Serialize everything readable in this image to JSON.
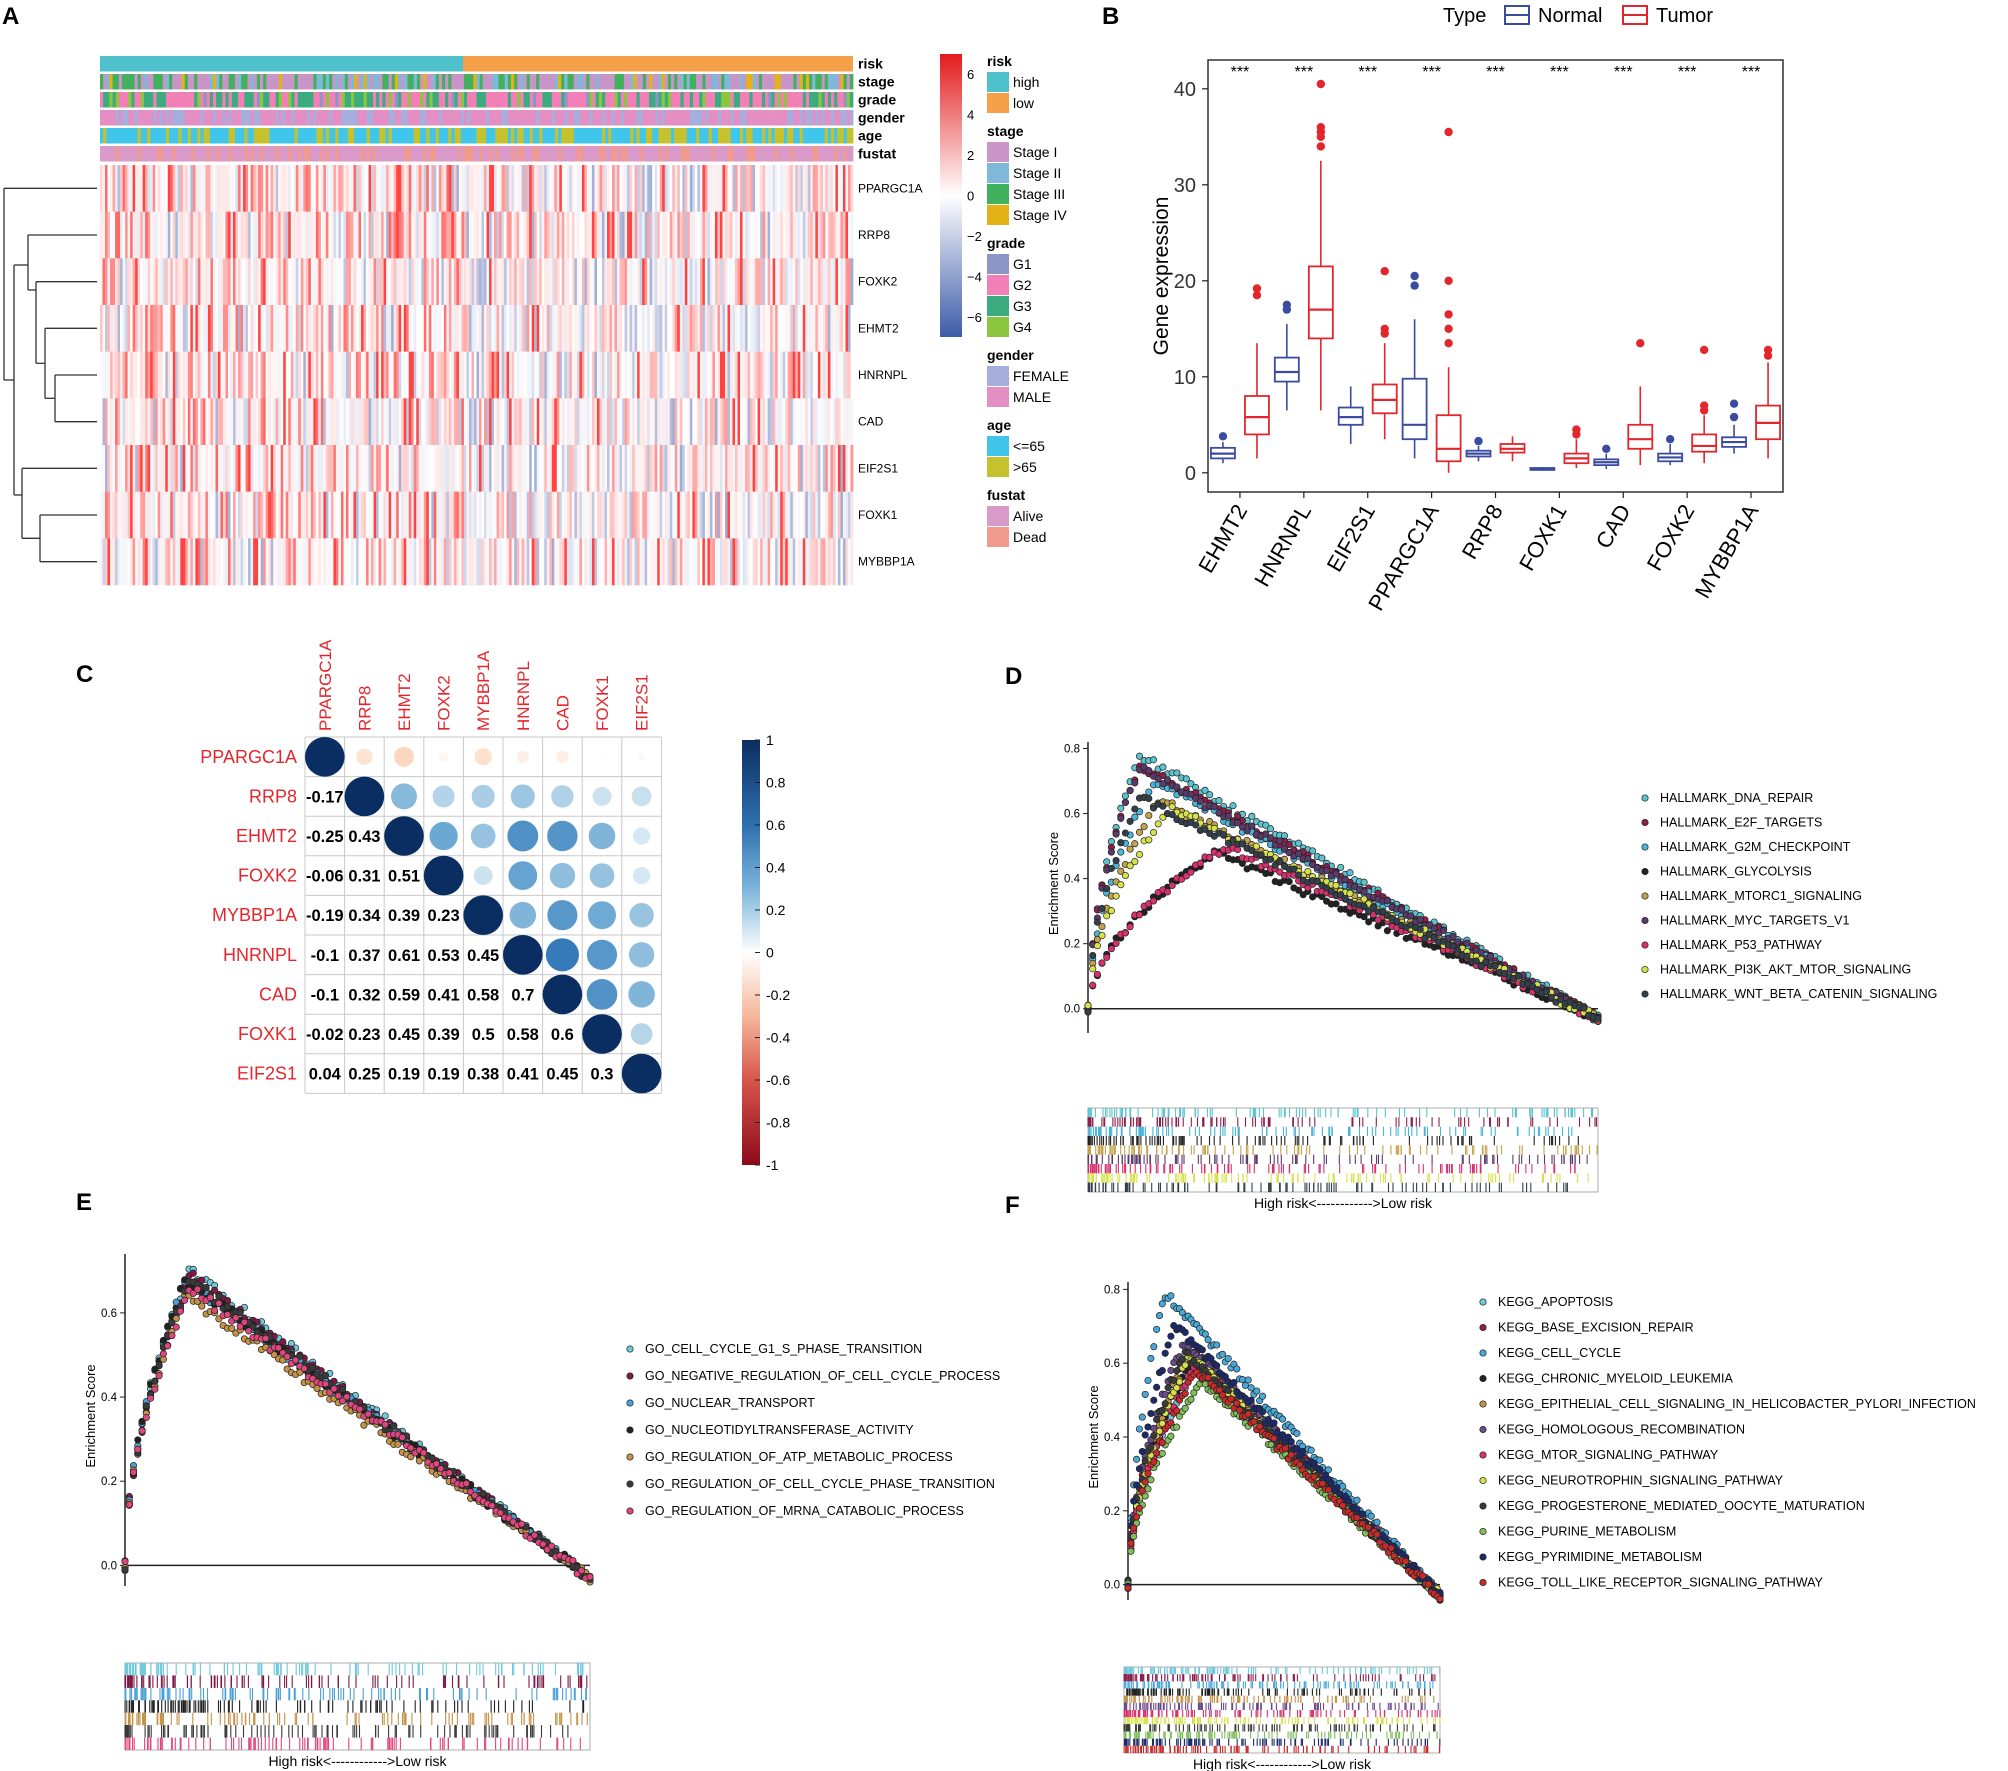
{
  "panel_labels": [
    "A",
    "B",
    "C",
    "D",
    "E",
    "F"
  ],
  "colors": {
    "risk_high": "#4fc1cc",
    "risk_low": "#f5a14a",
    "stage_I": "#c994c7",
    "stage_II": "#7fb8d8",
    "stage_III": "#41b15e",
    "stage_IV": "#e3b316",
    "grade_G1": "#8c96c6",
    "grade_G2": "#f27fb6",
    "grade_G3": "#3cab7f",
    "grade_G4": "#8cc63e",
    "gender_female": "#a6aede",
    "gender_male": "#e48fc4",
    "age_young": "#40c6ea",
    "age_old": "#c6c22e",
    "fustat_alive": "#d999c9",
    "fustat_dead": "#f19a8e",
    "heat_high": "#e41a1c",
    "heat_mid": "#ffffff",
    "heat_low": "#3c5ba8",
    "normal": "#3b4ba0",
    "tumor": "#e2262b",
    "corr_pos": "#0a2e61",
    "corr_neg": "#8b0a1a",
    "label_red": "#e3262c"
  },
  "chart_data": [
    {
      "panel": "A",
      "type": "heatmap",
      "annotation_rows": [
        "risk",
        "stage",
        "grade",
        "gender",
        "age",
        "fustat"
      ],
      "genes": [
        "PPARGC1A",
        "RRP8",
        "FOXK2",
        "EHMT2",
        "HNRNPL",
        "CAD",
        "EIF2S1",
        "FOXK1",
        "MYBBP1A"
      ],
      "colorbar": {
        "ticks": [
          "6",
          "4",
          "2",
          "0",
          "−2",
          "−4",
          "−6"
        ],
        "range": [
          -7,
          7
        ]
      },
      "legend": [
        {
          "title": "risk",
          "items": [
            {
              "label": "high",
              "color": "risk_high"
            },
            {
              "label": "low",
              "color": "risk_low"
            }
          ]
        },
        {
          "title": "stage",
          "items": [
            {
              "label": "Stage I",
              "color": "stage_I"
            },
            {
              "label": "Stage II",
              "color": "stage_II"
            },
            {
              "label": "Stage III",
              "color": "stage_III"
            },
            {
              "label": "Stage IV",
              "color": "stage_IV"
            }
          ]
        },
        {
          "title": "grade",
          "items": [
            {
              "label": "G1",
              "color": "grade_G1"
            },
            {
              "label": "G2",
              "color": "grade_G2"
            },
            {
              "label": "G3",
              "color": "grade_G3"
            },
            {
              "label": "G4",
              "color": "grade_G4"
            }
          ]
        },
        {
          "title": "gender",
          "items": [
            {
              "label": "FEMALE",
              "color": "gender_female"
            },
            {
              "label": "MALE",
              "color": "gender_male"
            }
          ]
        },
        {
          "title": "age",
          "items": [
            {
              "label": "<=65",
              "color": "age_young"
            },
            {
              "label": ">65",
              "color": "age_old"
            }
          ]
        },
        {
          "title": "fustat",
          "items": [
            {
              "label": "Alive",
              "color": "fustat_alive"
            },
            {
              "label": "Dead",
              "color": "fustat_dead"
            }
          ]
        }
      ]
    },
    {
      "panel": "B",
      "type": "box",
      "legend_title": "Type",
      "series": [
        {
          "name": "Normal",
          "color": "normal"
        },
        {
          "name": "Tumor",
          "color": "tumor"
        }
      ],
      "ylabel": "Gene expression",
      "ylim": [
        -2,
        43
      ],
      "yticks": [
        0,
        10,
        20,
        30,
        40
      ],
      "significance": "***",
      "categories": [
        "EHMT2",
        "HNRNPL",
        "EIF2S1",
        "PPARGC1A",
        "RRP8",
        "FOXK1",
        "CAD",
        "FOXK2",
        "MYBBP1A"
      ],
      "boxes": [
        {
          "normal": {
            "min": 1.0,
            "q1": 1.5,
            "med": 2.0,
            "q3": 2.6,
            "max": 3.2,
            "out": [
              3.8
            ]
          },
          "tumor": {
            "min": 1.5,
            "q1": 4.0,
            "med": 5.8,
            "q3": 8.0,
            "max": 13.5,
            "out": [
              18.5,
              19.2
            ]
          }
        },
        {
          "normal": {
            "min": 6.5,
            "q1": 9.5,
            "med": 10.5,
            "q3": 12.0,
            "max": 15.5,
            "out": [
              17.0,
              17.5
            ]
          },
          "tumor": {
            "min": 6.5,
            "q1": 14.0,
            "med": 17.0,
            "q3": 21.5,
            "max": 32.5,
            "out": [
              34.0,
              35.0,
              35.5,
              36.0,
              40.5
            ]
          }
        },
        {
          "normal": {
            "min": 3.0,
            "q1": 5.0,
            "med": 5.8,
            "q3": 6.8,
            "max": 9.0,
            "out": []
          },
          "tumor": {
            "min": 3.5,
            "q1": 6.2,
            "med": 7.6,
            "q3": 9.2,
            "max": 13.5,
            "out": [
              14.5,
              15.0,
              21.0
            ]
          }
        },
        {
          "normal": {
            "min": 1.5,
            "q1": 3.5,
            "med": 5.0,
            "q3": 9.8,
            "max": 16.0,
            "out": [
              19.5,
              20.5
            ]
          },
          "tumor": {
            "min": 0.0,
            "q1": 1.2,
            "med": 2.5,
            "q3": 6.0,
            "max": 11.0,
            "out": [
              13.5,
              15.0,
              16.5,
              20.0,
              35.5
            ]
          }
        },
        {
          "normal": {
            "min": 1.2,
            "q1": 1.7,
            "med": 2.0,
            "q3": 2.3,
            "max": 2.8,
            "out": [
              3.3
            ]
          },
          "tumor": {
            "min": 1.2,
            "q1": 2.1,
            "med": 2.5,
            "q3": 3.0,
            "max": 3.8,
            "out": []
          }
        },
        {
          "normal": {
            "min": 0.2,
            "q1": 0.3,
            "med": 0.4,
            "q3": 0.5,
            "max": 0.6,
            "out": []
          },
          "tumor": {
            "min": 0.5,
            "q1": 1.0,
            "med": 1.5,
            "q3": 2.0,
            "max": 3.5,
            "out": [
              4.0,
              4.5
            ]
          }
        },
        {
          "normal": {
            "min": 0.4,
            "q1": 0.8,
            "med": 1.1,
            "q3": 1.4,
            "max": 2.0,
            "out": [
              2.5
            ]
          },
          "tumor": {
            "min": 0.8,
            "q1": 2.5,
            "med": 3.5,
            "q3": 5.0,
            "max": 9.0,
            "out": [
              13.5
            ]
          }
        },
        {
          "normal": {
            "min": 0.8,
            "q1": 1.2,
            "med": 1.6,
            "q3": 2.0,
            "max": 3.0,
            "out": [
              3.5
            ]
          },
          "tumor": {
            "min": 1.0,
            "q1": 2.2,
            "med": 2.8,
            "q3": 4.0,
            "max": 6.0,
            "out": [
              6.5,
              7.0,
              12.8
            ]
          }
        },
        {
          "normal": {
            "min": 2.0,
            "q1": 2.7,
            "med": 3.2,
            "q3": 3.7,
            "max": 5.0,
            "out": [
              5.8,
              7.2
            ]
          },
          "tumor": {
            "min": 1.5,
            "q1": 3.5,
            "med": 5.2,
            "q3": 7.0,
            "max": 11.5,
            "out": [
              12.2,
              12.8
            ]
          }
        }
      ]
    },
    {
      "panel": "C",
      "type": "correlation",
      "labels": [
        "PPARGC1A",
        "RRP8",
        "EHMT2",
        "FOXK2",
        "MYBBP1A",
        "HNRNPL",
        "CAD",
        "FOXK1",
        "EIF2S1"
      ],
      "matrix": [
        [
          1,
          -0.17,
          -0.25,
          -0.06,
          -0.19,
          -0.1,
          -0.1,
          -0.02,
          0.04
        ],
        [
          -0.17,
          1,
          0.43,
          0.31,
          0.34,
          0.37,
          0.32,
          0.23,
          0.25
        ],
        [
          -0.25,
          0.43,
          1,
          0.51,
          0.39,
          0.61,
          0.59,
          0.45,
          0.19
        ],
        [
          -0.06,
          0.31,
          0.51,
          1,
          0.23,
          0.53,
          0.41,
          0.39,
          0.19
        ],
        [
          -0.19,
          0.34,
          0.39,
          0.23,
          1,
          0.45,
          0.58,
          0.5,
          0.38
        ],
        [
          -0.1,
          0.37,
          0.61,
          0.53,
          0.45,
          1,
          0.7,
          0.58,
          0.41
        ],
        [
          -0.1,
          0.32,
          0.59,
          0.41,
          0.58,
          0.7,
          1,
          0.6,
          0.45
        ],
        [
          -0.02,
          0.23,
          0.45,
          0.39,
          0.5,
          0.58,
          0.6,
          1,
          0.3
        ],
        [
          0.04,
          0.25,
          0.19,
          0.19,
          0.38,
          0.41,
          0.45,
          0.3,
          1
        ]
      ],
      "lower_text": [
        [
          "",
          "",
          "",
          "",
          "",
          "",
          "",
          "",
          ""
        ],
        [
          "-0.17",
          "",
          "",
          "",
          "",
          "",
          "",
          "",
          ""
        ],
        [
          "-0.25",
          "0.43",
          "",
          "",
          "",
          "",
          "",
          "",
          ""
        ],
        [
          "-0.06",
          "0.31",
          "0.51",
          "",
          "",
          "",
          "",
          "",
          ""
        ],
        [
          "-0.19",
          "0.34",
          "0.39",
          "0.23",
          "",
          "",
          "",
          "",
          ""
        ],
        [
          "-0.1",
          "0.37",
          "0.61",
          "0.53",
          "0.45",
          "",
          "",
          "",
          ""
        ],
        [
          "-0.1",
          "0.32",
          "0.59",
          "0.41",
          "0.58",
          "0.7",
          "",
          "",
          ""
        ],
        [
          "-0.02",
          "0.23",
          "0.45",
          "0.39",
          "0.5",
          "0.58",
          "0.6",
          "",
          ""
        ],
        [
          "0.04",
          "0.25",
          "0.19",
          "0.19",
          "0.38",
          "0.41",
          "0.45",
          "0.3",
          ""
        ]
      ],
      "colorbar_ticks": [
        "1",
        "0.8",
        "0.6",
        "0.4",
        "0.2",
        "0",
        "-0.2",
        "-0.4",
        "-0.6",
        "-0.8",
        "-1"
      ]
    },
    {
      "panel": "D",
      "type": "line",
      "ylabel": "Enrichment Score",
      "yticks": [
        "0.0",
        "0.2",
        "0.4",
        "0.6",
        "0.8"
      ],
      "ylim": [
        -0.05,
        0.82
      ],
      "caption": "High risk<------------>Low risk",
      "series": [
        {
          "name": "HALLMARK_DNA_REPAIR",
          "color": "#5bc2cf",
          "peak": 0.78,
          "at": 0.1
        },
        {
          "name": "HALLMARK_E2F_TARGETS",
          "color": "#8e1e4a",
          "peak": 0.75,
          "at": 0.1
        },
        {
          "name": "HALLMARK_G2M_CHECKPOINT",
          "color": "#49b5d8",
          "peak": 0.7,
          "at": 0.13
        },
        {
          "name": "HALLMARK_GLYCOLYSIS",
          "color": "#222222",
          "peak": 0.48,
          "at": 0.25
        },
        {
          "name": "HALLMARK_MTORC1_SIGNALING",
          "color": "#c3a24a",
          "peak": 0.64,
          "at": 0.14
        },
        {
          "name": "HALLMARK_MYC_TARGETS_V1",
          "color": "#5a3a6a",
          "peak": 0.74,
          "at": 0.1
        },
        {
          "name": "HALLMARK_P53_PATHWAY",
          "color": "#d9306e",
          "peak": 0.5,
          "at": 0.27
        },
        {
          "name": "HALLMARK_PI3K_AKT_MTOR_SIGNALING",
          "color": "#d7e24a",
          "peak": 0.62,
          "at": 0.16
        },
        {
          "name": "HALLMARK_WNT_BETA_CATENIN_SIGNALING",
          "color": "#333f4a",
          "peak": 0.65,
          "at": 0.1
        }
      ]
    },
    {
      "panel": "E",
      "type": "line",
      "ylabel": "Enrichment Score",
      "yticks": [
        "0.0",
        "0.2",
        "0.4",
        "0.6"
      ],
      "ylim": [
        -0.03,
        0.74
      ],
      "caption": "High risk<------------>Low risk",
      "series": [
        {
          "name": "GO_CELL_CYCLE_G1_S_PHASE_TRANSITION",
          "color": "#6fc8dc",
          "peak": 0.7,
          "at": 0.14
        },
        {
          "name": "GO_NEGATIVE_REGULATION_OF_CELL_CYCLE_PROCESS",
          "color": "#7d1a45",
          "peak": 0.69,
          "at": 0.14
        },
        {
          "name": "GO_NUCLEAR_TRANSPORT",
          "color": "#4b9fd5",
          "peak": 0.68,
          "at": 0.13
        },
        {
          "name": "GO_NUCLEOTIDYLTRANSFERASE_ACTIVITY",
          "color": "#222222",
          "peak": 0.68,
          "at": 0.13
        },
        {
          "name": "GO_REGULATION_OF_ATP_METABOLIC_PROCESS",
          "color": "#c39247",
          "peak": 0.64,
          "at": 0.13
        },
        {
          "name": "GO_REGULATION_OF_CELL_CYCLE_PHASE_TRANSITION",
          "color": "#3a3a3a",
          "peak": 0.68,
          "at": 0.14
        },
        {
          "name": "GO_REGULATION_OF_MRNA_CATABOLIC_PROCESS",
          "color": "#e0457c",
          "peak": 0.66,
          "at": 0.14
        }
      ]
    },
    {
      "panel": "F",
      "type": "line",
      "ylabel": "Enrichment Score",
      "yticks": [
        "0.0",
        "0.2",
        "0.4",
        "0.6",
        "0.8"
      ],
      "ylim": [
        -0.02,
        0.82
      ],
      "caption": "High risk<------------>Low risk",
      "series": [
        {
          "name": "KEGG_APOPTOSIS",
          "color": "#6fc8dc",
          "peak": 0.6,
          "at": 0.22
        },
        {
          "name": "KEGG_BASE_EXCISION_REPAIR",
          "color": "#8e1e4a",
          "peak": 0.64,
          "at": 0.2
        },
        {
          "name": "KEGG_CELL_CYCLE",
          "color": "#49a8d8",
          "peak": 0.79,
          "at": 0.12
        },
        {
          "name": "KEGG_CHRONIC_MYELOID_LEUKEMIA",
          "color": "#222222",
          "peak": 0.6,
          "at": 0.2
        },
        {
          "name": "KEGG_EPITHELIAL_CELL_SIGNALING_IN_HELICOBACTER_PYLORI_INFECTION",
          "color": "#c39247",
          "peak": 0.63,
          "at": 0.2
        },
        {
          "name": "KEGG_HOMOLOGOUS_RECOMBINATION",
          "color": "#6a4c8c",
          "peak": 0.66,
          "at": 0.18
        },
        {
          "name": "KEGG_MTOR_SIGNALING_PATHWAY",
          "color": "#d9306e",
          "peak": 0.6,
          "at": 0.22
        },
        {
          "name": "KEGG_NEUROTROPHIN_SIGNALING_PATHWAY",
          "color": "#d7e24a",
          "peak": 0.62,
          "at": 0.2
        },
        {
          "name": "KEGG_PROGESTERONE_MEDIATED_OOCYTE_MATURATION",
          "color": "#3a3a3a",
          "peak": 0.63,
          "at": 0.18
        },
        {
          "name": "KEGG_PURINE_METABOLISM",
          "color": "#7fbf5a",
          "peak": 0.55,
          "at": 0.24
        },
        {
          "name": "KEGG_PYRIMIDINE_METABOLISM",
          "color": "#1b2a6b",
          "peak": 0.7,
          "at": 0.15
        },
        {
          "name": "KEGG_TOLL_LIKE_RECEPTOR_SIGNALING_PATHWAY",
          "color": "#c92a2a",
          "peak": 0.58,
          "at": 0.22
        }
      ]
    }
  ]
}
